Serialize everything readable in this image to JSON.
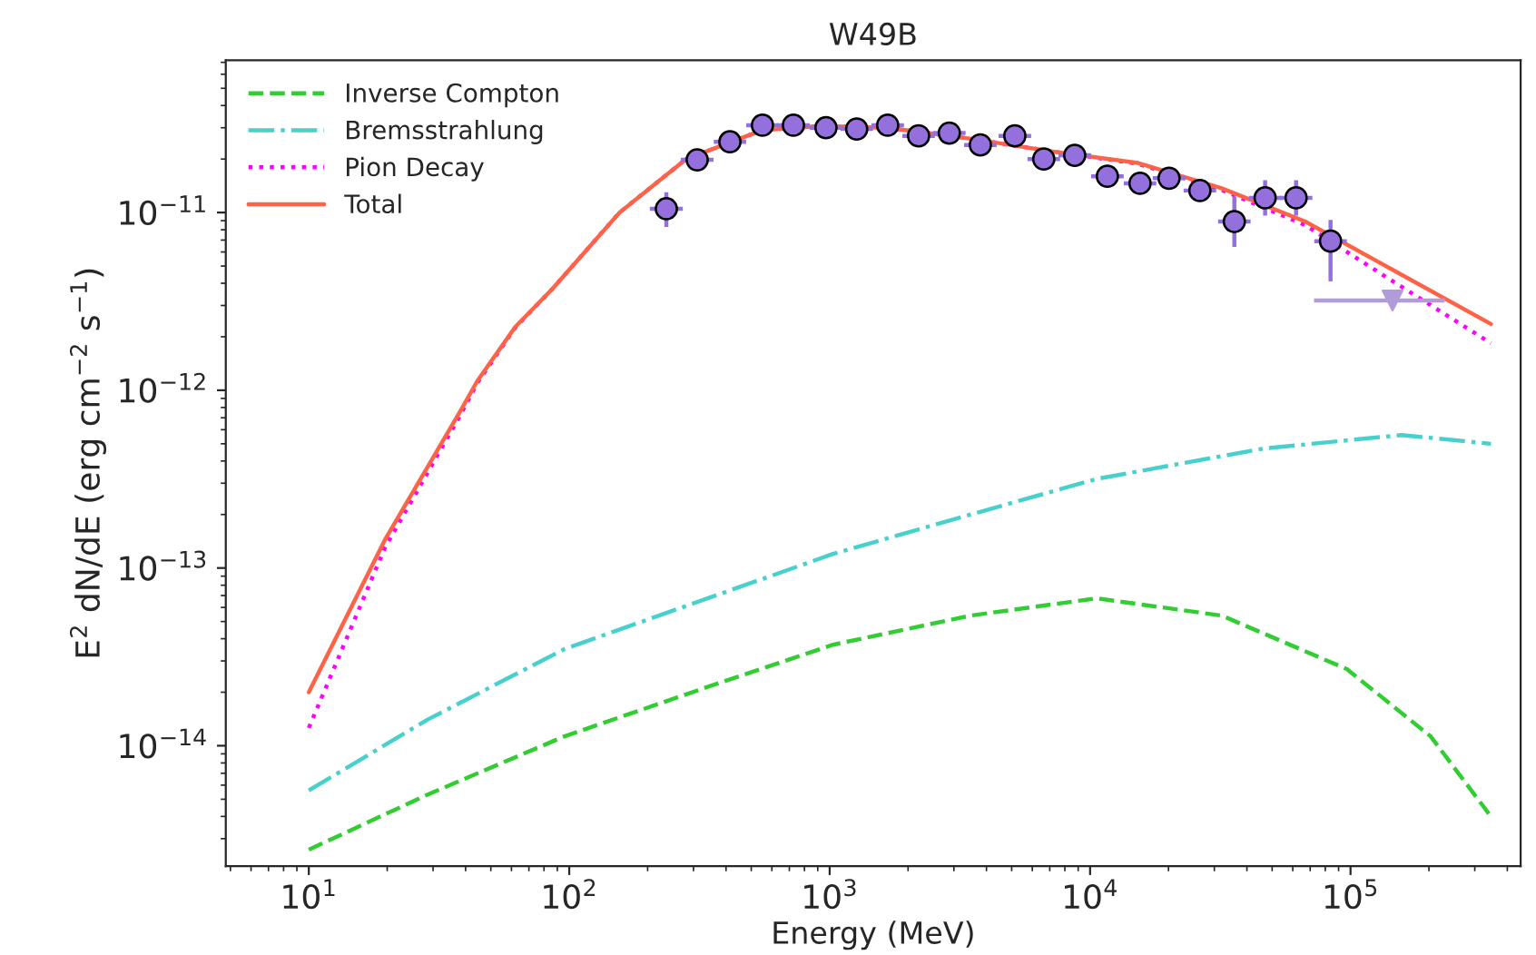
{
  "chart_data": {
    "type": "line",
    "title": "W49B",
    "xlabel": "Energy (MeV)",
    "ylabel": "E$^{2}$ dN/dE (erg cm$^{−2}$ s$^{−1}$)",
    "log": "xy",
    "grid": false,
    "legend": "top left",
    "xlim": [
      4.8,
      450000
    ],
    "ylim": [
      2.1e-15,
      7.2e-11
    ],
    "xticks": [
      {
        "value": 10,
        "label": "10$^{1}$"
      },
      {
        "value": 100,
        "label": "10$^{2}$"
      },
      {
        "value": 1000,
        "label": "10$^{3}$"
      },
      {
        "value": 10000,
        "label": "10$^{4}$"
      },
      {
        "value": 100000,
        "label": "10$^{5}$"
      }
    ],
    "yticks": [
      {
        "value": 1e-14,
        "label": "10$^{−14}$"
      },
      {
        "value": 1e-13,
        "label": "10$^{−13}$"
      },
      {
        "value": 1e-12,
        "label": "10$^{−12}$"
      },
      {
        "value": 1e-11,
        "label": "10$^{−11}$"
      }
    ],
    "series": [
      {
        "name": "Inverse Compton",
        "line_style": "dashed",
        "color": "#32cd32",
        "x": [
          10,
          28.5,
          96,
          327,
          1030,
          3480,
          10600,
          32000,
          96800,
          203000,
          346000
        ],
        "values": [
          2.6e-15,
          5.3e-15,
          1.13e-14,
          2.1e-14,
          3.7e-14,
          5.4e-14,
          6.75e-14,
          5.4e-14,
          2.7e-14,
          1.13e-14,
          4e-15
        ]
      },
      {
        "name": "Bremsstrahlung",
        "line_style": "dashdot",
        "color": "#48d1cc",
        "x": [
          10,
          28.5,
          96,
          1030,
          3480,
          10600,
          46300,
          157000,
          346000
        ],
        "values": [
          5.6e-15,
          1.4e-14,
          3.5e-14,
          1.2e-13,
          2e-13,
          3.17e-13,
          4.7e-13,
          5.6e-13,
          5e-13
        ]
      },
      {
        "name": "Pion Decay",
        "line_style": "dotted",
        "color": "#ff00ff",
        "x": [
          10,
          19.6,
          38.3,
          44.4,
          62,
          86.3,
          156,
          281,
          548,
          920,
          1660,
          3480,
          7280,
          15270,
          32000,
          67000,
          140000,
          346000
        ],
        "values": [
          1.26e-14,
          1.3e-13,
          7.3e-13,
          1.1e-12,
          2.25e-12,
          3.73e-12,
          1e-11,
          2e-11,
          2.9e-11,
          3.07e-11,
          3e-11,
          2.6e-11,
          2.2e-11,
          1.88e-11,
          1.34e-11,
          8.5e-12,
          4.25e-12,
          1.84e-12
        ]
      },
      {
        "name": "Total",
        "line_style": "solid",
        "color": "#ff6347",
        "x": [
          10,
          19.6,
          38.3,
          44.4,
          62,
          86.3,
          156,
          281,
          548,
          920,
          1660,
          3480,
          7280,
          15270,
          32000,
          67000,
          140000,
          346000
        ],
        "values": [
          2e-14,
          1.44e-13,
          7.7e-13,
          1.13e-12,
          2.27e-12,
          3.73e-12,
          1e-11,
          2e-11,
          2.9e-11,
          3.07e-11,
          3e-11,
          2.6e-11,
          2.2e-11,
          1.9e-11,
          1.37e-11,
          8.9e-12,
          4.9e-12,
          2.36e-12
        ]
      },
      {
        "type": "scatter",
        "marker": "circle",
        "color": "#9370db",
        "x": [
          236,
          310,
          414,
          552,
          726,
          968,
          1270,
          1670,
          2195,
          2880,
          3790,
          5140,
          6640,
          8730,
          11650,
          15550,
          20100,
          26400,
          35800,
          47000,
          61800,
          83800
        ],
        "values": [
          1.05e-11,
          1.98e-11,
          2.5e-11,
          3.1e-11,
          3.1e-11,
          3e-11,
          2.95e-11,
          3.1e-11,
          2.7e-11,
          2.8e-11,
          2.4e-11,
          2.7e-11,
          2e-11,
          2.1e-11,
          1.6e-11,
          1.46e-11,
          1.56e-11,
          1.33e-11,
          8.9e-12,
          1.21e-11,
          1.21e-11,
          6.9e-12
        ],
        "errors": [
          [
            8.3e-12,
            1.3e-11
          ],
          [
            1.83e-11,
            2.14e-11
          ],
          [
            2.35e-11,
            2.66e-11
          ],
          [
            2.94e-11,
            3.27e-11
          ],
          [
            2.95e-11,
            3.26e-11
          ],
          [
            2.86e-11,
            3.15e-11
          ],
          [
            2.81e-11,
            3.1e-11
          ],
          [
            2.95e-11,
            3.26e-11
          ],
          [
            2.56e-11,
            2.85e-11
          ],
          [
            2.65e-11,
            2.96e-11
          ],
          [
            2.26e-11,
            2.55e-11
          ],
          [
            2.55e-11,
            2.87e-11
          ],
          [
            1.86e-11,
            2.16e-11
          ],
          [
            1.95e-11,
            2.27e-11
          ],
          [
            1.47e-11,
            1.75e-11
          ],
          [
            1.32e-11,
            1.62e-11
          ],
          [
            1.41e-11,
            1.73e-11
          ],
          [
            1.18e-11,
            1.51e-11
          ],
          [
            6.4e-12,
            1.23e-11
          ],
          [
            9.6e-12,
            1.52e-11
          ],
          [
            9.6e-12,
            1.52e-11
          ],
          [
            4.1e-12,
            9.1e-12
          ]
        ],
        "xerrors": [
          [
            204,
            273
          ],
          [
            268,
            358
          ],
          [
            359,
            478
          ],
          [
            478,
            638
          ],
          [
            629,
            839
          ],
          [
            838,
            1118
          ],
          [
            1100,
            1467
          ],
          [
            1446,
            1929
          ],
          [
            1901,
            2535
          ],
          [
            2494,
            3326
          ],
          [
            3282,
            4377
          ],
          [
            4451,
            5937
          ],
          [
            5750,
            7669
          ],
          [
            7560,
            10083
          ],
          [
            10089,
            13456
          ],
          [
            13466,
            17960
          ],
          [
            17407,
            23216
          ],
          [
            22862,
            30492
          ],
          [
            31003,
            41349
          ],
          [
            40702,
            54285
          ],
          [
            53519,
            71379
          ],
          [
            72571,
            96789
          ]
        ]
      },
      {
        "type": "scatter",
        "marker": "triangle",
        "color": "#b19cd9",
        "x": [
          145000
        ],
        "values": [
          3.2e-12
        ],
        "xerrors": [
          [
            72400,
            230000
          ]
        ]
      }
    ]
  }
}
